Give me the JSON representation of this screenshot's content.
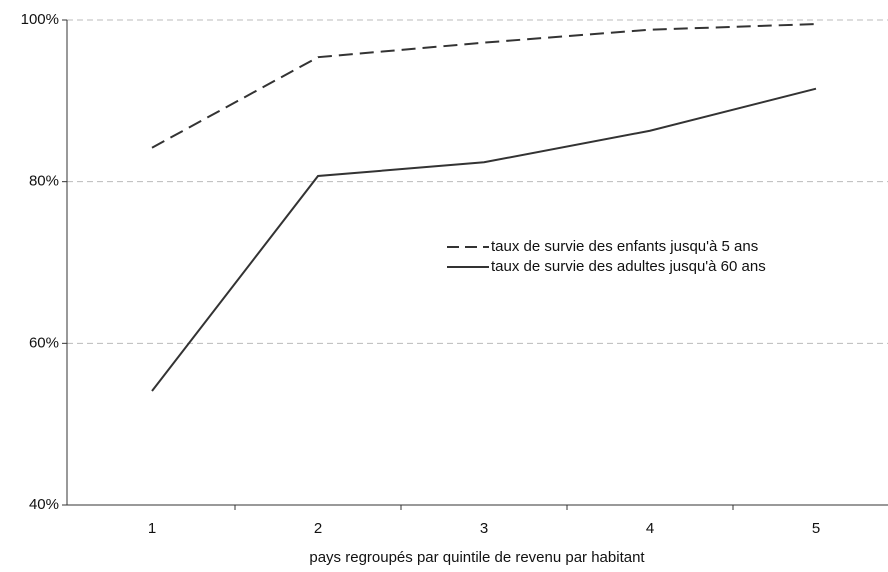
{
  "chart_data": {
    "type": "line",
    "xlabel": "pays regroupés par quintile de revenu par habitant",
    "categories": [
      "1",
      "2",
      "3",
      "4",
      "5"
    ],
    "series": [
      {
        "name": "taux de survie des enfants jusqu'à 5 ans",
        "color": "#333333",
        "line_style": "dashed",
        "values": [
          84.2,
          95.4,
          97.2,
          98.8,
          99.5
        ]
      },
      {
        "name": "taux de survie des adultes jusqu'à 60 ans",
        "color": "#333333",
        "line_style": "solid",
        "values": [
          54.1,
          80.7,
          82.4,
          86.3,
          91.5
        ]
      }
    ],
    "ylim": [
      40,
      100
    ],
    "yticks": [
      {
        "value": 40,
        "label": "40%"
      },
      {
        "value": 60,
        "label": "60%"
      },
      {
        "value": 80,
        "label": "80%"
      },
      {
        "value": 100,
        "label": "100%"
      }
    ],
    "grid": true,
    "legend": "right"
  }
}
